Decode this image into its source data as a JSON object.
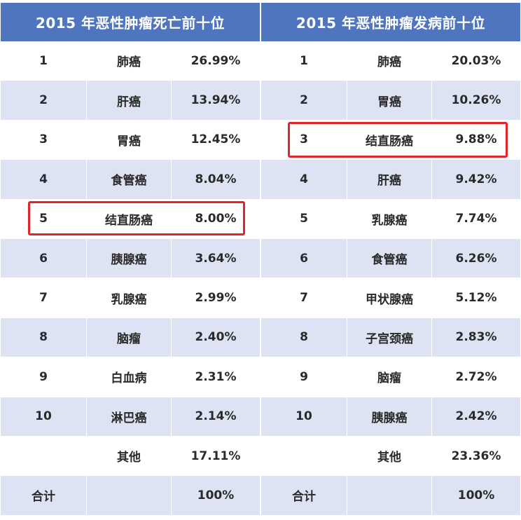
{
  "left": {
    "title": "2015 年恶性肿瘤死亡前十位",
    "rows": [
      {
        "rank": "1",
        "name": "肺癌",
        "pct": "26.99%"
      },
      {
        "rank": "2",
        "name": "肝癌",
        "pct": "13.94%"
      },
      {
        "rank": "3",
        "name": "胃癌",
        "pct": "12.45%"
      },
      {
        "rank": "4",
        "name": "食管癌",
        "pct": "8.04%"
      },
      {
        "rank": "5",
        "name": "结直肠癌",
        "pct": "8.00%"
      },
      {
        "rank": "6",
        "name": "胰腺癌",
        "pct": "3.64%"
      },
      {
        "rank": "7",
        "name": "乳腺癌",
        "pct": "2.99%"
      },
      {
        "rank": "8",
        "name": "脑瘤",
        "pct": "2.40%"
      },
      {
        "rank": "9",
        "name": "白血病",
        "pct": "2.31%"
      },
      {
        "rank": "10",
        "name": "淋巴癌",
        "pct": "2.14%"
      },
      {
        "rank": "",
        "name": "其他",
        "pct": "17.11%"
      },
      {
        "rank": "合计",
        "name": "",
        "pct": "100%"
      }
    ],
    "highlight_rank": "5"
  },
  "right": {
    "title": "2015 年恶性肿瘤发病前十位",
    "rows": [
      {
        "rank": "1",
        "name": "肺癌",
        "pct": "20.03%"
      },
      {
        "rank": "2",
        "name": "胃癌",
        "pct": "10.26%"
      },
      {
        "rank": "3",
        "name": "结直肠癌",
        "pct": "9.88%"
      },
      {
        "rank": "4",
        "name": "肝癌",
        "pct": "9.42%"
      },
      {
        "rank": "5",
        "name": "乳腺癌",
        "pct": "7.74%"
      },
      {
        "rank": "6",
        "name": "食管癌",
        "pct": "6.26%"
      },
      {
        "rank": "7",
        "name": "甲状腺癌",
        "pct": "5.12%"
      },
      {
        "rank": "8",
        "name": "子宫颈癌",
        "pct": "2.83%"
      },
      {
        "rank": "9",
        "name": "脑瘤",
        "pct": "2.72%"
      },
      {
        "rank": "10",
        "name": "胰腺癌",
        "pct": "2.42%"
      },
      {
        "rank": "",
        "name": "其他",
        "pct": "23.36%"
      },
      {
        "rank": "合计",
        "name": "",
        "pct": "100%"
      }
    ],
    "highlight_rank": "3"
  },
  "colors": {
    "header_bg": "#4f75bf",
    "row_shade": "#dde3f2",
    "highlight_border": "#e0262b"
  }
}
